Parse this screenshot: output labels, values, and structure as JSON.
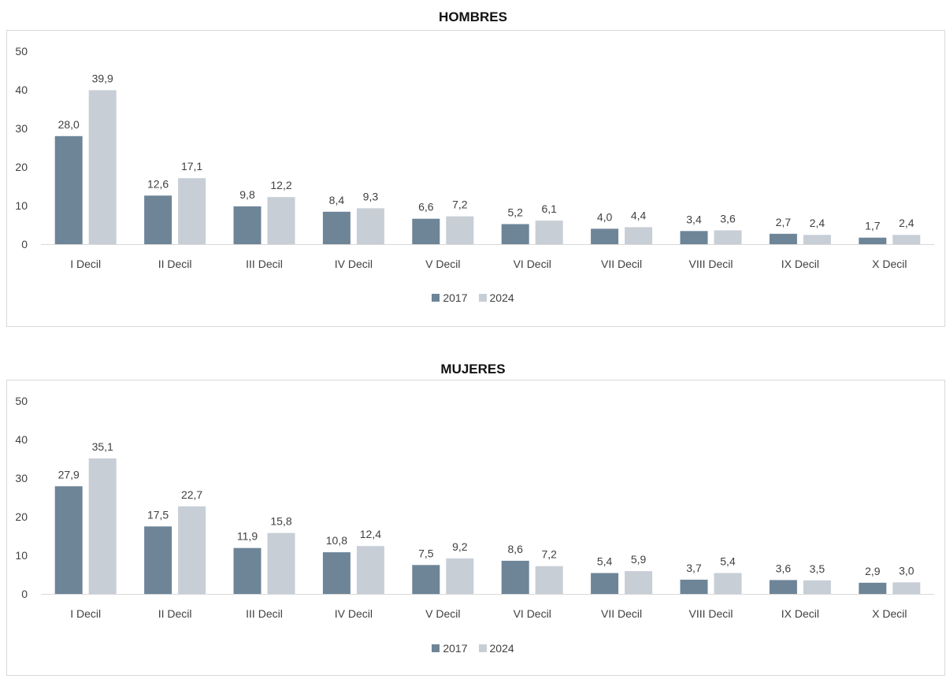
{
  "colors": {
    "series_2017": "#6e8598",
    "series_2024": "#c7ced6",
    "axis": "#d9d9d9",
    "text": "#404040"
  },
  "chart_data": [
    {
      "type": "bar",
      "title": "HOMBRES",
      "categories": [
        "I Decil",
        "II Decil",
        "III Decil",
        "IV Decil",
        "V Decil",
        "VI Decil",
        "VII Decil",
        "VIII Decil",
        "IX Decil",
        "X Decil"
      ],
      "ylim": [
        0,
        50
      ],
      "yticks": [
        0,
        10,
        20,
        30,
        40,
        50
      ],
      "legend": "bottom",
      "grid": false,
      "series": [
        {
          "name": "2017",
          "values": [
            28.0,
            12.6,
            9.8,
            8.4,
            6.6,
            5.2,
            4.0,
            3.4,
            2.7,
            1.7
          ],
          "labels": [
            "28,0",
            "12,6",
            "9,8",
            "8,4",
            "6,6",
            "5,2",
            "4,0",
            "3,4",
            "2,7",
            "1,7"
          ]
        },
        {
          "name": "2024",
          "values": [
            39.9,
            17.1,
            12.2,
            9.3,
            7.2,
            6.1,
            4.4,
            3.6,
            2.4,
            2.4
          ],
          "labels": [
            "39,9",
            "17,1",
            "12,2",
            "9,3",
            "7,2",
            "6,1",
            "4,4",
            "3,6",
            "2,4",
            "2,4"
          ]
        }
      ]
    },
    {
      "type": "bar",
      "title": "MUJERES",
      "categories": [
        "I Decil",
        "II Decil",
        "III Decil",
        "IV Decil",
        "V Decil",
        "VI Decil",
        "VII Decil",
        "VIII Decil",
        "IX Decil",
        "X Decil"
      ],
      "ylim": [
        0,
        50
      ],
      "yticks": [
        0,
        10,
        20,
        30,
        40,
        50
      ],
      "legend": "bottom",
      "grid": false,
      "series": [
        {
          "name": "2017",
          "values": [
            27.9,
            17.5,
            11.9,
            10.8,
            7.5,
            8.6,
            5.4,
            3.7,
            3.6,
            2.9
          ],
          "labels": [
            "27,9",
            "17,5",
            "11,9",
            "10,8",
            "7,5",
            "8,6",
            "5,4",
            "3,7",
            "3,6",
            "2,9"
          ]
        },
        {
          "name": "2024",
          "values": [
            35.1,
            22.7,
            15.8,
            12.4,
            9.2,
            7.2,
            5.9,
            5.4,
            3.5,
            3.0
          ],
          "labels": [
            "35,1",
            "22,7",
            "15,8",
            "12,4",
            "9,2",
            "7,2",
            "5,9",
            "5,4",
            "3,5",
            "3,0"
          ]
        }
      ]
    }
  ]
}
